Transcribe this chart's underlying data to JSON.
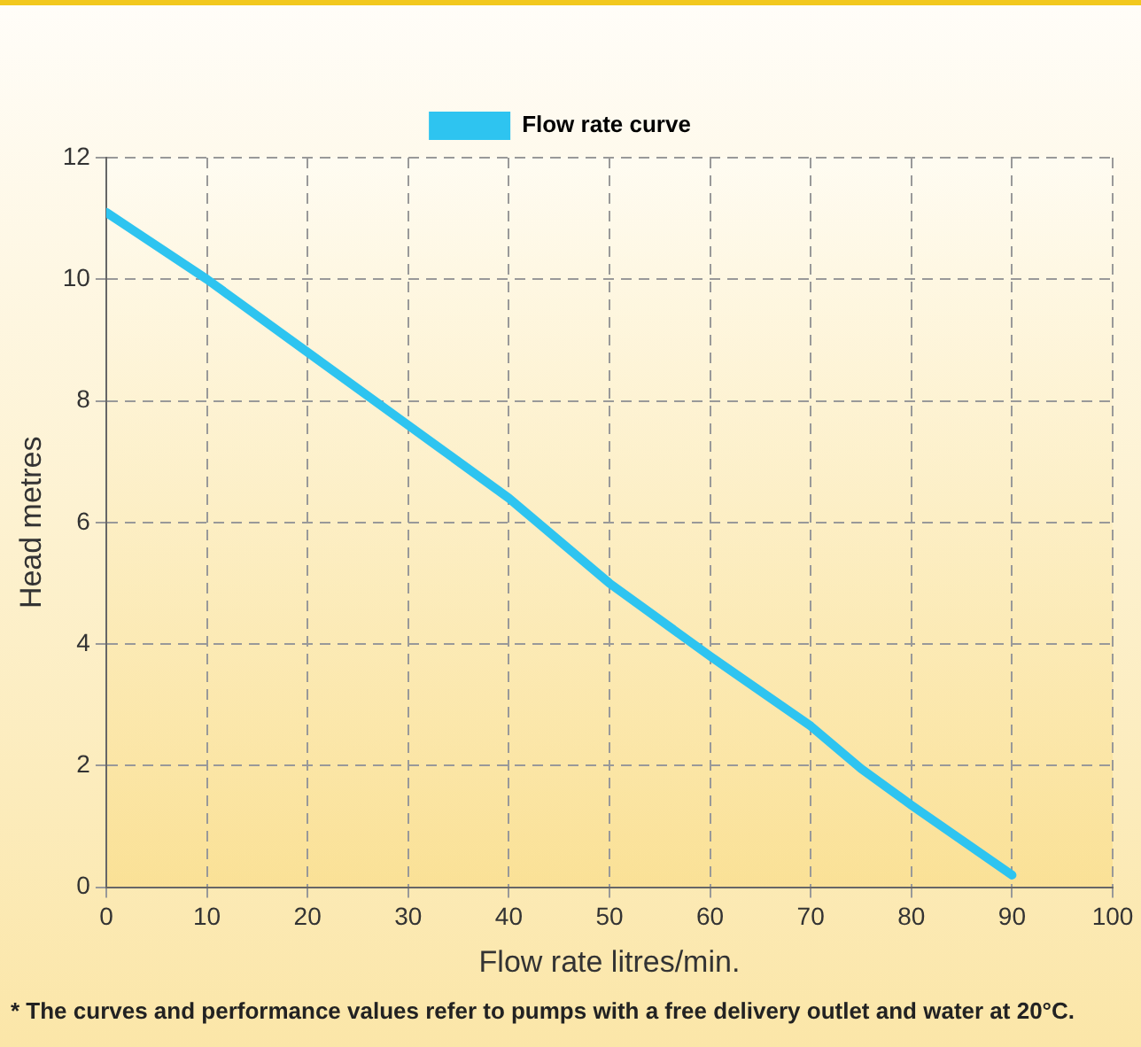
{
  "chart_data": {
    "type": "line",
    "xlabel": "Flow rate litres/min.",
    "ylabel": "Head metres",
    "x": [
      0,
      10,
      20,
      30,
      40,
      50,
      60,
      70,
      75,
      80,
      90
    ],
    "series": [
      {
        "name": "Flow rate curve",
        "color": "#2ec4f0",
        "values": [
          11.1,
          10.0,
          8.8,
          7.6,
          6.4,
          5.0,
          3.8,
          2.65,
          1.95,
          1.35,
          0.2
        ]
      }
    ],
    "xlim": [
      0,
      100
    ],
    "xticks": [
      0,
      10,
      20,
      30,
      40,
      50,
      60,
      70,
      80,
      90,
      100
    ],
    "ylim": [
      0,
      12
    ],
    "yticks": [
      0,
      2,
      4,
      6,
      8,
      10,
      12
    ],
    "grid": true,
    "legend": "top",
    "marker": "none",
    "line_style": "solid",
    "annotations": [
      "* The curves and performance values refer to pumps with a free delivery outlet and water at 20°C."
    ]
  }
}
